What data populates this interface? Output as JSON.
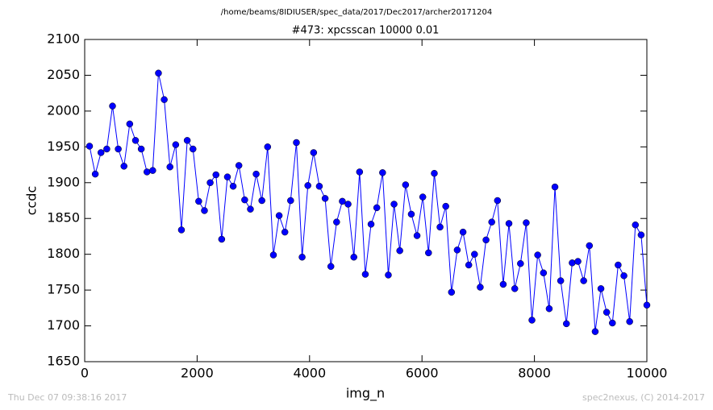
{
  "chart_data": {
    "type": "line",
    "suptitle": "/home/beams/8IDIUSER/spec_data/2017/Dec2017/archer20171204",
    "title": "#473: xpcsscan 10000 0.01",
    "x_label": "img_n",
    "y_label": "ccdc",
    "footer_left": "Thu Dec 07 09:38:16 2017",
    "footer_right": "spec2nexus, (C) 2014-2017",
    "xlim": [
      0,
      10000
    ],
    "xticks": [
      0,
      2000,
      4000,
      6000,
      8000,
      10000
    ],
    "ylim": [
      1650,
      2100
    ],
    "yticks": [
      1650,
      1700,
      1750,
      1800,
      1850,
      1900,
      1950,
      2000,
      2050,
      2100
    ],
    "grid": false,
    "series": [
      {
        "color": "#0000ff",
        "x": [
          86,
          188,
          290,
          393,
          495,
          597,
          699,
          801,
          904,
          1006,
          1108,
          1210,
          1312,
          1415,
          1517,
          1619,
          1721,
          1824,
          1926,
          2028,
          2130,
          2232,
          2335,
          2437,
          2539,
          2641,
          2743,
          2846,
          2948,
          3050,
          3152,
          3254,
          3357,
          3459,
          3561,
          3663,
          3766,
          3868,
          3970,
          4072,
          4174,
          4277,
          4379,
          4481,
          4583,
          4685,
          4788,
          4890,
          4992,
          5094,
          5196,
          5299,
          5401,
          5503,
          5605,
          5708,
          5810,
          5912,
          6014,
          6116,
          6219,
          6321,
          6423,
          6525,
          6627,
          6730,
          6832,
          6934,
          7036,
          7139,
          7241,
          7343,
          7445,
          7547,
          7650,
          7752,
          7854,
          7956,
          8058,
          8161,
          8263,
          8365,
          8467,
          8569,
          8672,
          8774,
          8876,
          8978,
          9081,
          9183,
          9285,
          9387,
          9489,
          9592,
          9694,
          9796,
          9898,
          10000
        ],
        "values": [
          1951,
          1912,
          1942,
          1947,
          2007,
          1947,
          1923,
          1982,
          1959,
          1947,
          1915,
          1917,
          2053,
          2016,
          1922,
          1953,
          1834,
          1959,
          1947,
          1874,
          1861,
          1900,
          1911,
          1821,
          1908,
          1895,
          1924,
          1876,
          1863,
          1912,
          1875,
          1950,
          1799,
          1854,
          1831,
          1875,
          1956,
          1796,
          1896,
          1942,
          1895,
          1878,
          1783,
          1845,
          1874,
          1870,
          1796,
          1915,
          1772,
          1842,
          1865,
          1914,
          1771,
          1870,
          1805,
          1897,
          1856,
          1826,
          1880,
          1802,
          1913,
          1838,
          1867,
          1747,
          1806,
          1831,
          1785,
          1800,
          1754,
          1820,
          1845,
          1875,
          1758,
          1843,
          1752,
          1787,
          1844,
          1708,
          1799,
          1774,
          1724,
          1894,
          1763,
          1703,
          1788,
          1790,
          1763,
          1812,
          1692,
          1752,
          1719,
          1704,
          1785,
          1770,
          1706,
          1841,
          1827,
          1729
        ]
      }
    ]
  }
}
